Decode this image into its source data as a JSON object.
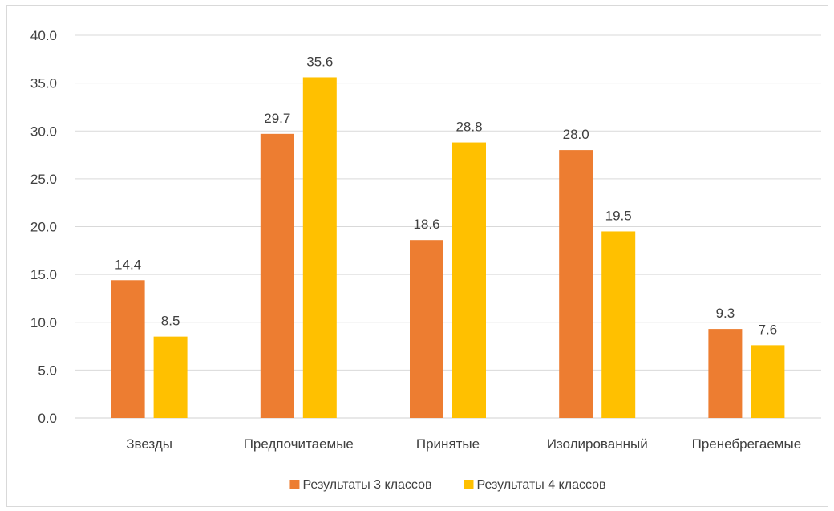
{
  "chart_data": {
    "type": "bar",
    "categories": [
      "Звезды",
      "Предпочитаемые",
      "Принятые",
      "Изолированный",
      "Пренебрегаемые"
    ],
    "series": [
      {
        "name": "Результаты 3 классов",
        "color": "#ED7D31",
        "values": [
          14.4,
          29.7,
          18.6,
          28.0,
          9.3
        ],
        "labels": [
          "14.4",
          "29.7",
          "18.6",
          "28.0",
          "9.3"
        ]
      },
      {
        "name": "Результаты 4 классов",
        "color": "#FFC000",
        "values": [
          8.5,
          35.6,
          28.8,
          19.5,
          7.6
        ],
        "labels": [
          "8.5",
          "35.6",
          "28.8",
          "19.5",
          "7.6"
        ]
      }
    ],
    "ylim": [
      0,
      40
    ],
    "yticks": [
      "0.0",
      "5.0",
      "10.0",
      "15.0",
      "20.0",
      "25.0",
      "30.0",
      "35.0",
      "40.0"
    ],
    "grid": true,
    "legend_position": "bottom",
    "title": "",
    "xlabel": "",
    "ylabel": ""
  }
}
